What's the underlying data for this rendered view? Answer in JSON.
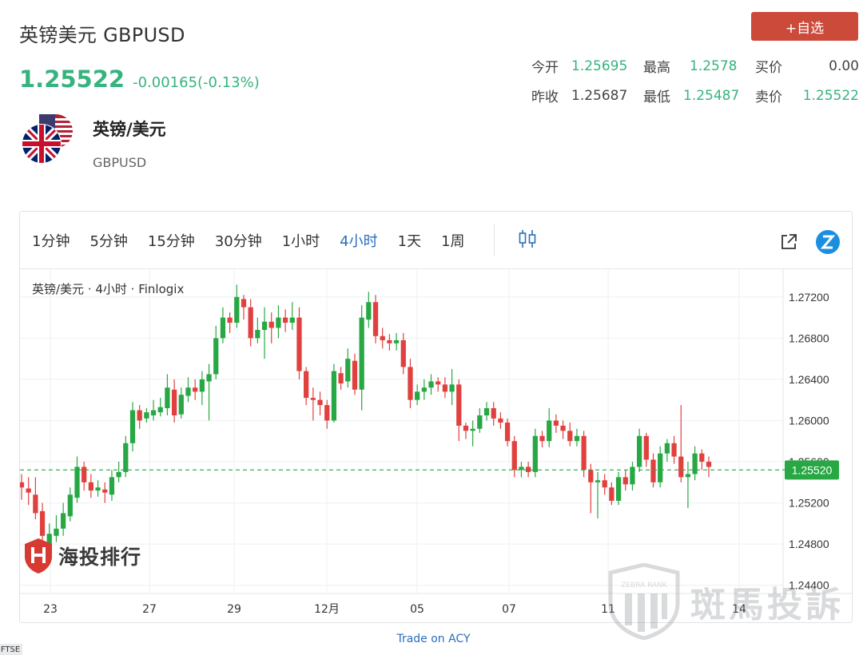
{
  "header": {
    "title": "英镑美元 GBPUSD",
    "price": "1.25522",
    "change": "-0.00165(-0.13%)",
    "add_label": "+自选"
  },
  "quote": {
    "rows": [
      [
        {
          "label": "今开",
          "value": "1.25695"
        },
        {
          "label": "最高",
          "value": "1.2578"
        },
        {
          "label": "买价",
          "value": "0.00"
        }
      ],
      [
        {
          "label": "昨收",
          "value": "1.25687"
        },
        {
          "label": "最低",
          "value": "1.25487"
        },
        {
          "label": "卖价",
          "value": "1.25522"
        }
      ]
    ]
  },
  "instrument": {
    "name": "英镑/美元",
    "code": "GBPUSD"
  },
  "toolbar": {
    "timeframes": [
      "1分钟",
      "5分钟",
      "15分钟",
      "30分钟",
      "1小时",
      "4小时",
      "1天",
      "1周"
    ],
    "active": "4小时"
  },
  "chart_caption": "英镑/美元 · 4小时 · Finlogix",
  "watermark": {
    "logo_text": "海投排行",
    "zebra_text": "斑馬投訴",
    "zebra_sub": "ZEBRA RANK"
  },
  "footer": {
    "trade_on": "Trade on ACY",
    "ftse": "FTSE"
  },
  "colors": {
    "up": "#27a844",
    "down": "#e0413f",
    "accent": "#2a6ebb",
    "price_green": "#36b37e",
    "button_red": "#cc4a3a"
  },
  "chart_data": {
    "type": "candlestick",
    "title": "英镑/美元 · 4小时 · Finlogix",
    "current_price": 1.2552,
    "current_price_label": "1.25520",
    "ylim": [
      1.2432,
      1.2747
    ],
    "y_ticks": [
      "1.27200",
      "1.26800",
      "1.26400",
      "1.26000",
      "1.25600",
      "1.25200",
      "1.24800",
      "1.24400"
    ],
    "x_ticks": [
      "23",
      "27",
      "29",
      "12月",
      "05",
      "07",
      "11",
      "14"
    ],
    "candles": [
      [
        1.254,
        1.2535,
        1.2548,
        1.2523
      ],
      [
        1.2534,
        1.253,
        1.2545,
        1.2518
      ],
      [
        1.2528,
        1.251,
        1.2545,
        1.2504
      ],
      [
        1.2512,
        1.2488,
        1.252,
        1.248
      ],
      [
        1.2478,
        1.249,
        1.25,
        1.2472
      ],
      [
        1.2488,
        1.2495,
        1.2508,
        1.2482
      ],
      [
        1.2495,
        1.251,
        1.252,
        1.2488
      ],
      [
        1.2507,
        1.2528,
        1.2535,
        1.2502
      ],
      [
        1.2525,
        1.2555,
        1.2565,
        1.252
      ],
      [
        1.2555,
        1.254,
        1.256,
        1.2532
      ],
      [
        1.254,
        1.2532,
        1.2548,
        1.2525
      ],
      [
        1.2532,
        1.2535,
        1.2542,
        1.2526
      ],
      [
        1.2533,
        1.253,
        1.254,
        1.252
      ],
      [
        1.2528,
        1.2545,
        1.2552,
        1.2522
      ],
      [
        1.2545,
        1.255,
        1.256,
        1.254
      ],
      [
        1.255,
        1.2578,
        1.2585,
        1.2545
      ],
      [
        1.2578,
        1.261,
        1.2618,
        1.257
      ],
      [
        1.261,
        1.26,
        1.2615,
        1.2592
      ],
      [
        1.2602,
        1.2608,
        1.2612,
        1.2598
      ],
      [
        1.2605,
        1.261,
        1.262,
        1.26
      ],
      [
        1.2608,
        1.2613,
        1.2622,
        1.2604
      ],
      [
        1.2612,
        1.2632,
        1.2645,
        1.2605
      ],
      [
        1.263,
        1.2605,
        1.264,
        1.2598
      ],
      [
        1.2606,
        1.2625,
        1.2632,
        1.2602
      ],
      [
        1.2624,
        1.2632,
        1.2642,
        1.2618
      ],
      [
        1.2632,
        1.2628,
        1.264,
        1.262
      ],
      [
        1.2628,
        1.264,
        1.2648,
        1.2615
      ],
      [
        1.2638,
        1.2645,
        1.2655,
        1.26
      ],
      [
        1.2645,
        1.268,
        1.2692,
        1.264
      ],
      [
        1.268,
        1.27,
        1.271,
        1.2675
      ],
      [
        1.27,
        1.2695,
        1.2705,
        1.2685
      ],
      [
        1.2695,
        1.272,
        1.2732,
        1.269
      ],
      [
        1.2718,
        1.271,
        1.2722,
        1.2698
      ],
      [
        1.271,
        1.268,
        1.2718,
        1.2672
      ],
      [
        1.268,
        1.2688,
        1.27,
        1.2675
      ],
      [
        1.2688,
        1.2696,
        1.271,
        1.266
      ],
      [
        1.2696,
        1.269,
        1.2705,
        1.2675
      ],
      [
        1.269,
        1.27,
        1.2712,
        1.268
      ],
      [
        1.27,
        1.2695,
        1.2708,
        1.2686
      ],
      [
        1.2695,
        1.27,
        1.2715,
        1.2688
      ],
      [
        1.27,
        1.2648,
        1.271,
        1.264
      ],
      [
        1.2648,
        1.2622,
        1.2652,
        1.2615
      ],
      [
        1.2622,
        1.262,
        1.2632,
        1.26
      ],
      [
        1.262,
        1.2615,
        1.2628,
        1.2605
      ],
      [
        1.2615,
        1.26,
        1.262,
        1.2592
      ],
      [
        1.26,
        1.2648,
        1.2655,
        1.2598
      ],
      [
        1.2646,
        1.2636,
        1.2652,
        1.263
      ],
      [
        1.2638,
        1.266,
        1.267,
        1.2632
      ],
      [
        1.2658,
        1.263,
        1.2665,
        1.2625
      ],
      [
        1.263,
        1.27,
        1.2712,
        1.261
      ],
      [
        1.2698,
        1.2715,
        1.2725,
        1.269
      ],
      [
        1.2715,
        1.2682,
        1.2722,
        1.2675
      ],
      [
        1.2682,
        1.2678,
        1.269,
        1.267
      ],
      [
        1.2678,
        1.2675,
        1.2684,
        1.2668
      ],
      [
        1.2675,
        1.2678,
        1.2685,
        1.2668
      ],
      [
        1.2678,
        1.2652,
        1.2685,
        1.2645
      ],
      [
        1.2652,
        1.262,
        1.266,
        1.2612
      ],
      [
        1.262,
        1.2628,
        1.2635,
        1.2615
      ],
      [
        1.2628,
        1.2632,
        1.264,
        1.262
      ],
      [
        1.2632,
        1.2638,
        1.2645,
        1.2625
      ],
      [
        1.2638,
        1.2635,
        1.2642,
        1.2628
      ],
      [
        1.2635,
        1.2628,
        1.2642,
        1.2622
      ],
      [
        1.2628,
        1.2635,
        1.265,
        1.2615
      ],
      [
        1.2635,
        1.2595,
        1.264,
        1.258
      ],
      [
        1.2595,
        1.259,
        1.2598,
        1.2582
      ],
      [
        1.259,
        1.2592,
        1.26,
        1.2575
      ],
      [
        1.2592,
        1.2605,
        1.2612,
        1.2588
      ],
      [
        1.2605,
        1.2612,
        1.2618,
        1.26
      ],
      [
        1.2612,
        1.2602,
        1.2618,
        1.2595
      ],
      [
        1.2602,
        1.2598,
        1.2608,
        1.2592
      ],
      [
        1.2598,
        1.258,
        1.2602,
        1.2575
      ],
      [
        1.258,
        1.2552,
        1.2585,
        1.2545
      ],
      [
        1.2552,
        1.2555,
        1.256,
        1.2545
      ],
      [
        1.2555,
        1.255,
        1.256,
        1.2545
      ],
      [
        1.255,
        1.2585,
        1.2592,
        1.2545
      ],
      [
        1.2585,
        1.258,
        1.259,
        1.2574
      ],
      [
        1.258,
        1.26,
        1.2612,
        1.2574
      ],
      [
        1.26,
        1.2595,
        1.2606,
        1.2588
      ],
      [
        1.2595,
        1.259,
        1.26,
        1.2582
      ],
      [
        1.259,
        1.258,
        1.2598,
        1.2575
      ],
      [
        1.258,
        1.2585,
        1.2592,
        1.2575
      ],
      [
        1.2585,
        1.2552,
        1.259,
        1.2545
      ],
      [
        1.2552,
        1.254,
        1.2558,
        1.251
      ],
      [
        1.254,
        1.2542,
        1.255,
        1.2505
      ],
      [
        1.2542,
        1.2535,
        1.2548,
        1.2528
      ],
      [
        1.2535,
        1.2522,
        1.254,
        1.2518
      ],
      [
        1.2522,
        1.2545,
        1.255,
        1.2518
      ],
      [
        1.2545,
        1.2538,
        1.2552,
        1.2532
      ],
      [
        1.2538,
        1.2555,
        1.256,
        1.2532
      ],
      [
        1.2555,
        1.2585,
        1.2592,
        1.255
      ],
      [
        1.2585,
        1.2562,
        1.2588,
        1.2555
      ],
      [
        1.2562,
        1.254,
        1.2568,
        1.2535
      ],
      [
        1.254,
        1.2568,
        1.2575,
        1.2535
      ],
      [
        1.2568,
        1.2578,
        1.2582,
        1.256
      ],
      [
        1.2578,
        1.2565,
        1.2585,
        1.2558
      ],
      [
        1.2565,
        1.2545,
        1.2615,
        1.254
      ],
      [
        1.2545,
        1.2548,
        1.256,
        1.2515
      ],
      [
        1.2548,
        1.2568,
        1.2575,
        1.2542
      ],
      [
        1.2568,
        1.256,
        1.2572,
        1.2552
      ],
      [
        1.256,
        1.2555,
        1.2565,
        1.2545
      ]
    ]
  }
}
